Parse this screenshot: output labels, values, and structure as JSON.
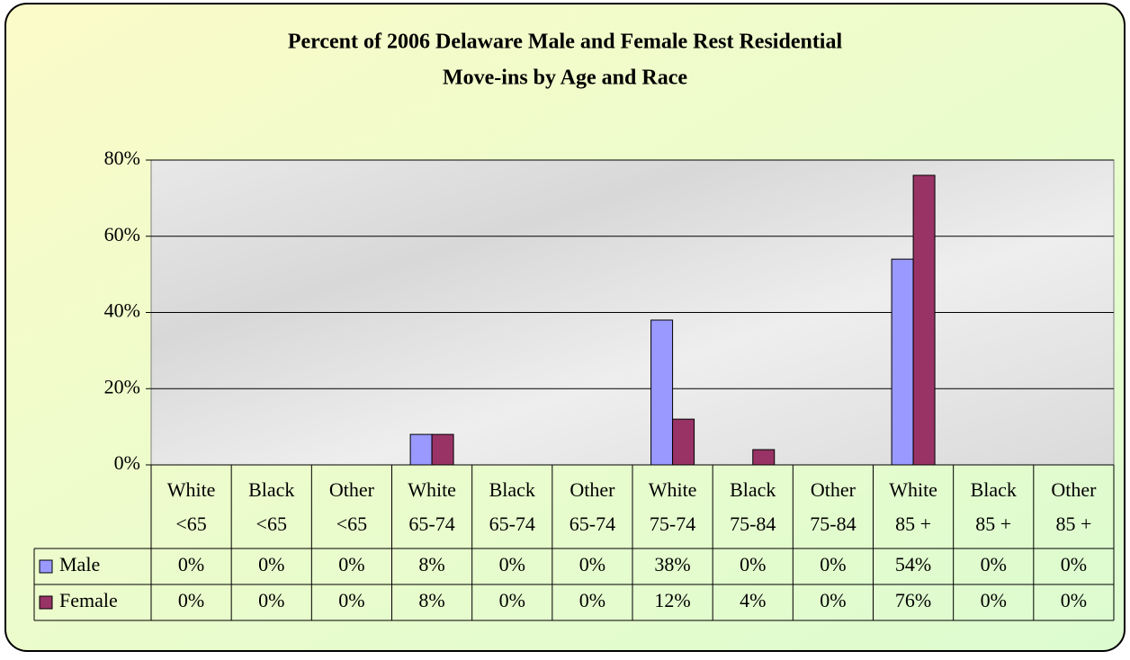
{
  "chart_data": {
    "type": "bar",
    "title": [
      "Percent of 2006 Delaware Male and Female Rest Residential",
      "Move-ins by Age and Race"
    ],
    "categories": [
      [
        "White",
        "<65"
      ],
      [
        "Black",
        "<65"
      ],
      [
        "Other",
        "<65"
      ],
      [
        "White",
        "65-74"
      ],
      [
        "Black",
        "65-74"
      ],
      [
        "Other",
        "65-74"
      ],
      [
        "White",
        "75-74"
      ],
      [
        "Black",
        "75-84"
      ],
      [
        "Other",
        "75-84"
      ],
      [
        "White",
        "85 +"
      ],
      [
        "Black",
        "85 +"
      ],
      [
        "Other",
        "85 +"
      ]
    ],
    "series": [
      {
        "name": "Male",
        "color": "#9999ff",
        "values": [
          0,
          0,
          0,
          8,
          0,
          0,
          38,
          0,
          0,
          54,
          0,
          0
        ],
        "value_labels": [
          "0%",
          "0%",
          "0%",
          "8%",
          "0%",
          "0%",
          "38%",
          "0%",
          "0%",
          "54%",
          "0%",
          "0%"
        ]
      },
      {
        "name": "Female",
        "color": "#993366",
        "values": [
          0,
          0,
          0,
          8,
          0,
          0,
          12,
          4,
          0,
          76,
          0,
          0
        ],
        "value_labels": [
          "0%",
          "0%",
          "0%",
          "8%",
          "0%",
          "0%",
          "12%",
          "4%",
          "0%",
          "76%",
          "0%",
          "0%"
        ]
      }
    ],
    "ylim": [
      0,
      80
    ],
    "yticks": [
      {
        "value": 0,
        "label": "0%"
      },
      {
        "value": 20,
        "label": "20%"
      },
      {
        "value": 40,
        "label": "40%"
      },
      {
        "value": 60,
        "label": "60%"
      },
      {
        "value": 80,
        "label": "80%"
      }
    ],
    "grid": true
  }
}
